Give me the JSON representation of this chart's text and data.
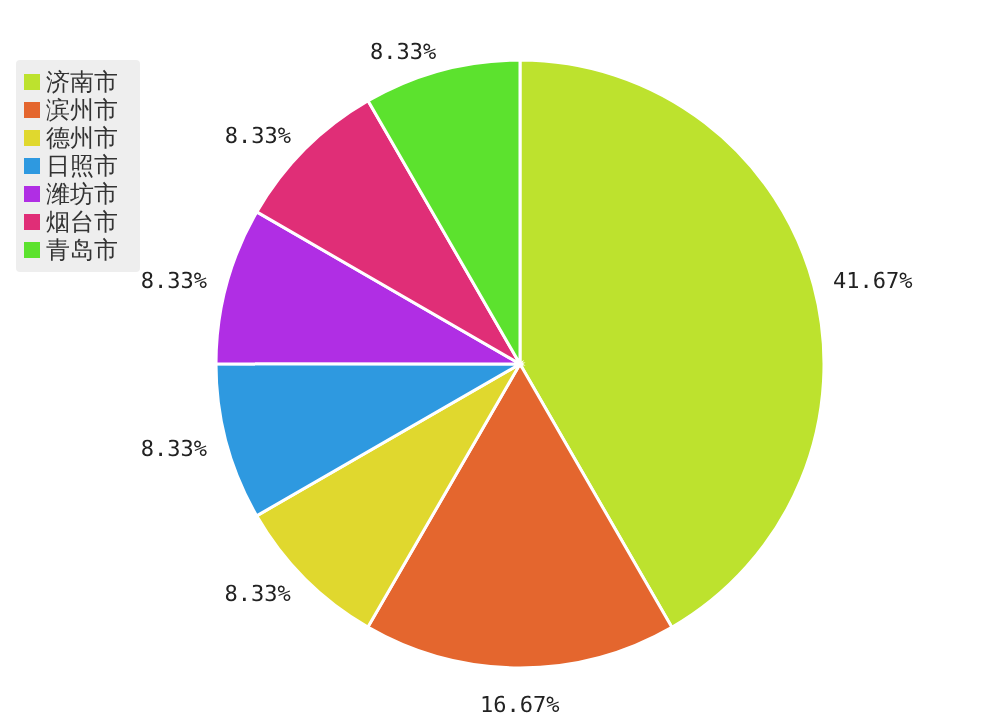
{
  "chart_data": {
    "type": "pie",
    "categories": [
      "济南市",
      "滨州市",
      "德州市",
      "日照市",
      "潍坊市",
      "烟台市",
      "青岛市"
    ],
    "values": [
      41.67,
      16.67,
      8.33,
      8.33,
      8.33,
      8.33,
      8.33
    ],
    "colors": [
      "#bde22e",
      "#e4662e",
      "#e0d82e",
      "#2e99e0",
      "#b02ee4",
      "#e02e77",
      "#5ce22e"
    ],
    "value_labels": [
      "41.67%",
      "16.67%",
      "8.33%",
      "8.33%",
      "8.33%",
      "8.33%",
      "8.33%"
    ],
    "legend": "top left"
  }
}
